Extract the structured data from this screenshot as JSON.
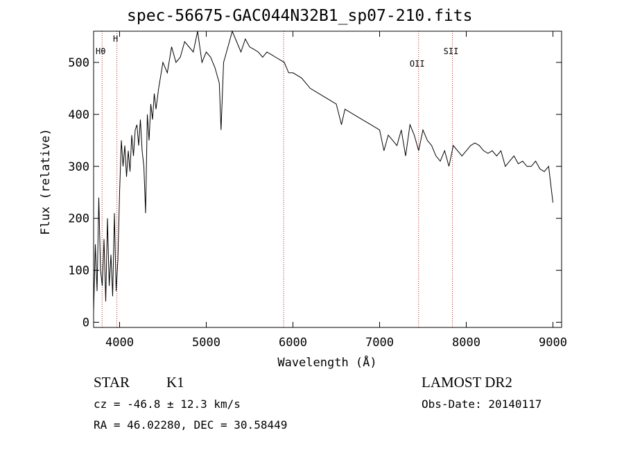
{
  "header": {
    "title": "spec-56675-GAC044N32B1_sp07-210.fits"
  },
  "info": {
    "object_class": "STAR",
    "subclass": "K1",
    "survey": "LAMOST DR2",
    "cz": "cz = -46.8 ± 12.3 km/s",
    "obs_date": "Obs-Date: 20140117",
    "radec": "RA =  46.02280, DEC =  30.58449"
  },
  "chart_data": {
    "type": "line",
    "title": "spec-56675-GAC044N32B1_sp07-210.fits",
    "xlabel": "Wavelength (Å)",
    "ylabel": "Flux (relative)",
    "xlim": [
      3700,
      9100
    ],
    "ylim": [
      -10,
      560
    ],
    "xticks": [
      4000,
      5000,
      6000,
      7000,
      8000,
      9000
    ],
    "yticks": [
      0,
      100,
      200,
      300,
      400,
      500
    ],
    "line_color": "#000000",
    "marker_color": "#b22222",
    "lines": [
      {
        "label": "Hθ",
        "x": 3798
      },
      {
        "label": "H",
        "x": 3969
      },
      {
        "label": "",
        "x": 5893
      },
      {
        "label": "OII",
        "x": 7450
      },
      {
        "label": "SII",
        "x": 7840
      }
    ],
    "series": [
      {
        "x": [
          3700,
          3720,
          3740,
          3760,
          3780,
          3800,
          3820,
          3840,
          3860,
          3880,
          3900,
          3920,
          3940,
          3960,
          3980,
          4000,
          4020,
          4040,
          4060,
          4080,
          4100,
          4120,
          4140,
          4160,
          4180,
          4200,
          4220,
          4240,
          4260,
          4280,
          4300,
          4320,
          4340,
          4360,
          4380,
          4400,
          4420,
          4450,
          4480,
          4500,
          4550,
          4600,
          4650,
          4700,
          4750,
          4800,
          4850,
          4900,
          4950,
          5000,
          5050,
          5100,
          5150,
          5170,
          5200,
          5250,
          5300,
          5350,
          5400,
          5450,
          5500,
          5550,
          5600,
          5650,
          5700,
          5750,
          5800,
          5850,
          5900,
          5950,
          6000,
          6100,
          6200,
          6300,
          6400,
          6500,
          6560,
          6600,
          6700,
          6800,
          6900,
          7000,
          7050,
          7100,
          7150,
          7200,
          7250,
          7300,
          7350,
          7400,
          7450,
          7500,
          7550,
          7600,
          7650,
          7700,
          7750,
          7800,
          7850,
          7900,
          7950,
          8000,
          8050,
          8100,
          8150,
          8200,
          8250,
          8300,
          8350,
          8400,
          8450,
          8500,
          8550,
          8600,
          8650,
          8700,
          8750,
          8800,
          8850,
          8900,
          8950,
          9000
        ],
        "y": [
          20,
          150,
          60,
          240,
          100,
          70,
          160,
          40,
          200,
          70,
          130,
          50,
          210,
          60,
          120,
          250,
          350,
          300,
          340,
          280,
          330,
          290,
          360,
          320,
          370,
          380,
          340,
          390,
          330,
          300,
          210,
          400,
          350,
          420,
          390,
          440,
          410,
          450,
          480,
          500,
          480,
          530,
          500,
          510,
          540,
          530,
          520,
          560,
          500,
          520,
          510,
          490,
          460,
          370,
          500,
          530,
          560,
          540,
          520,
          545,
          530,
          525,
          520,
          510,
          520,
          515,
          510,
          505,
          500,
          480,
          480,
          470,
          450,
          440,
          430,
          420,
          380,
          410,
          400,
          390,
          380,
          370,
          330,
          360,
          350,
          340,
          370,
          320,
          380,
          360,
          330,
          370,
          350,
          340,
          320,
          310,
          330,
          300,
          340,
          330,
          320,
          330,
          340,
          345,
          340,
          330,
          325,
          330,
          320,
          330,
          300,
          310,
          320,
          305,
          310,
          300,
          300,
          310,
          295,
          290,
          300,
          230
        ]
      }
    ]
  }
}
